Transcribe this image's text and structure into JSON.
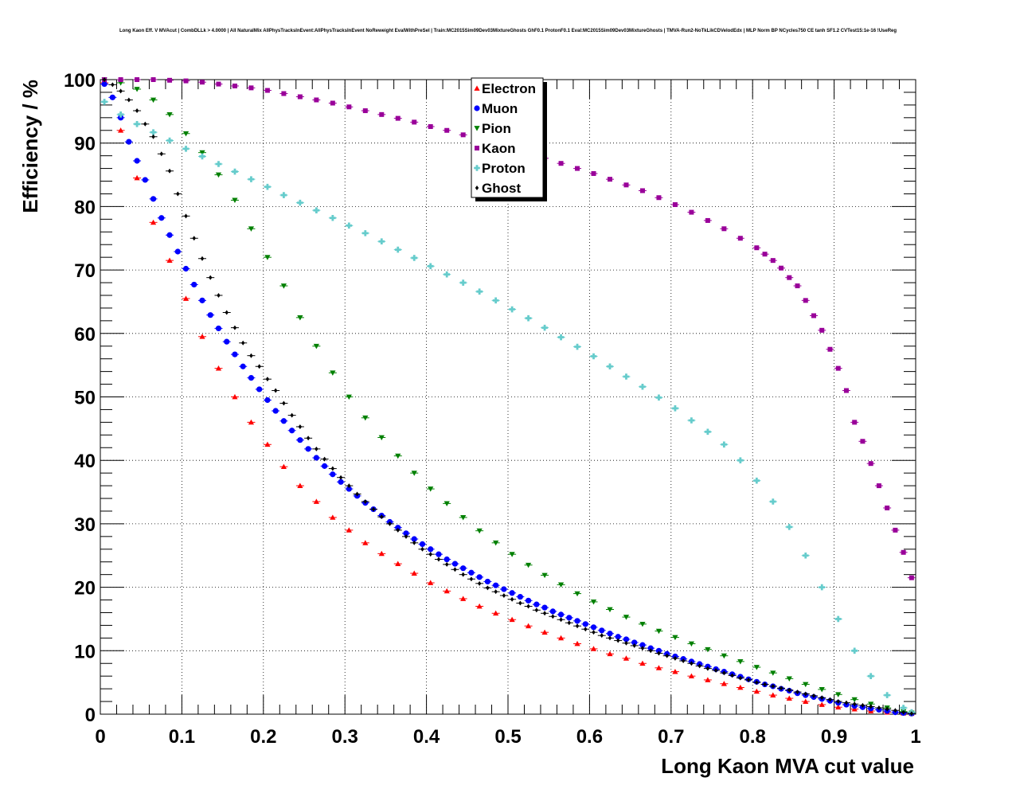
{
  "title": "Long Kaon Eff. V MVAcut | CombDLLk > 4.0000 | All NaturalMix AllPhysTracksInEvent:AllPhysTracksInEvent NoReweight EvalWithPreSel | Train:MC2015Sim09Dev03MixtureGhosts GhF0.1 ProtonF0.1 Eval:MC2015Sim09Dev03MixtureGhosts | TMVA-Run2-NoTkLikCDVelodEdx | MLP Norm BP NCycles750 CE tanh SF1.2 CVTest15:1e-16 !UseReg",
  "chart_data": {
    "type": "scatter",
    "xlabel": "Long Kaon MVA cut value",
    "ylabel": "Efficiency / %",
    "xlim": [
      0,
      1
    ],
    "ylim": [
      0,
      100
    ],
    "xticks": [
      "0",
      "0.1",
      "0.2",
      "0.3",
      "0.4",
      "0.5",
      "0.6",
      "0.7",
      "0.8",
      "0.9",
      "1"
    ],
    "yticks": [
      "0",
      "10",
      "20",
      "30",
      "40",
      "50",
      "60",
      "70",
      "80",
      "90",
      "100"
    ],
    "grid": true,
    "legend_position": "top-center",
    "series": [
      {
        "name": "Electron",
        "color": "#ff0000",
        "marker": "triangle-up",
        "x": [
          0.005,
          0.025,
          0.045,
          0.065,
          0.085,
          0.105,
          0.125,
          0.145,
          0.165,
          0.185,
          0.205,
          0.225,
          0.245,
          0.265,
          0.285,
          0.305,
          0.325,
          0.345,
          0.365,
          0.385,
          0.405,
          0.425,
          0.445,
          0.465,
          0.485,
          0.505,
          0.525,
          0.545,
          0.565,
          0.585,
          0.605,
          0.625,
          0.645,
          0.665,
          0.685,
          0.705,
          0.725,
          0.745,
          0.765,
          0.785,
          0.805,
          0.825,
          0.845,
          0.865,
          0.885,
          0.905,
          0.925,
          0.945,
          0.965,
          0.985,
          0.995
        ],
        "y": [
          99.5,
          92.0,
          84.5,
          77.5,
          71.5,
          65.5,
          59.5,
          54.5,
          50.0,
          46.0,
          42.5,
          39.0,
          36.0,
          33.5,
          31.0,
          29.0,
          27.0,
          25.3,
          23.7,
          22.2,
          20.7,
          19.4,
          18.2,
          17.0,
          15.9,
          14.9,
          13.9,
          12.9,
          12.0,
          11.1,
          10.3,
          9.5,
          8.8,
          8.0,
          7.3,
          6.7,
          6.0,
          5.4,
          4.8,
          4.2,
          3.6,
          3.0,
          2.5,
          2.0,
          1.5,
          1.1,
          0.8,
          0.5,
          0.3,
          0.15,
          0.1
        ]
      },
      {
        "name": "Muon",
        "color": "#0000ff",
        "marker": "circle",
        "x": [
          0.005,
          0.015,
          0.025,
          0.035,
          0.045,
          0.055,
          0.065,
          0.075,
          0.085,
          0.095,
          0.105,
          0.115,
          0.125,
          0.135,
          0.145,
          0.155,
          0.165,
          0.175,
          0.185,
          0.195,
          0.205,
          0.215,
          0.225,
          0.235,
          0.245,
          0.255,
          0.265,
          0.275,
          0.285,
          0.295,
          0.305,
          0.315,
          0.325,
          0.335,
          0.345,
          0.355,
          0.365,
          0.375,
          0.385,
          0.395,
          0.405,
          0.415,
          0.425,
          0.435,
          0.445,
          0.455,
          0.465,
          0.475,
          0.485,
          0.495,
          0.505,
          0.515,
          0.525,
          0.535,
          0.545,
          0.555,
          0.565,
          0.575,
          0.585,
          0.595,
          0.605,
          0.615,
          0.625,
          0.635,
          0.645,
          0.655,
          0.665,
          0.675,
          0.685,
          0.695,
          0.705,
          0.715,
          0.725,
          0.735,
          0.745,
          0.755,
          0.765,
          0.775,
          0.785,
          0.795,
          0.805,
          0.815,
          0.825,
          0.835,
          0.845,
          0.855,
          0.865,
          0.875,
          0.885,
          0.895,
          0.905,
          0.915,
          0.925,
          0.935,
          0.945,
          0.955,
          0.965,
          0.975,
          0.985,
          0.995
        ],
        "y": [
          99.3,
          97.2,
          94.0,
          90.2,
          87.2,
          84.2,
          81.2,
          78.2,
          75.5,
          72.9,
          70.2,
          67.7,
          65.2,
          62.9,
          60.8,
          58.7,
          56.7,
          54.8,
          53.0,
          51.2,
          49.5,
          47.8,
          46.2,
          44.7,
          43.2,
          41.8,
          40.4,
          39.1,
          37.8,
          36.6,
          35.5,
          34.4,
          33.3,
          32.3,
          31.3,
          30.3,
          29.4,
          28.5,
          27.6,
          26.8,
          26.0,
          25.2,
          24.4,
          23.7,
          23.0,
          22.3,
          21.6,
          20.9,
          20.3,
          19.7,
          19.1,
          18.5,
          17.9,
          17.3,
          16.8,
          16.2,
          15.7,
          15.2,
          14.7,
          14.2,
          13.7,
          13.2,
          12.7,
          12.2,
          11.8,
          11.3,
          10.9,
          10.4,
          10.0,
          9.5,
          9.1,
          8.7,
          8.3,
          7.9,
          7.5,
          7.1,
          6.7,
          6.3,
          5.9,
          5.5,
          5.1,
          4.7,
          4.4,
          4.0,
          3.7,
          3.3,
          3.0,
          2.7,
          2.4,
          2.1,
          1.8,
          1.5,
          1.3,
          1.1,
          0.9,
          0.7,
          0.5,
          0.3,
          0.2,
          0.1
        ]
      },
      {
        "name": "Pion",
        "color": "#008000",
        "marker": "triangle-down",
        "x": [
          0.005,
          0.025,
          0.045,
          0.065,
          0.085,
          0.105,
          0.125,
          0.145,
          0.165,
          0.185,
          0.205,
          0.225,
          0.245,
          0.265,
          0.285,
          0.305,
          0.325,
          0.345,
          0.365,
          0.385,
          0.405,
          0.425,
          0.445,
          0.465,
          0.485,
          0.505,
          0.525,
          0.545,
          0.565,
          0.585,
          0.605,
          0.625,
          0.645,
          0.665,
          0.685,
          0.705,
          0.725,
          0.745,
          0.765,
          0.785,
          0.805,
          0.825,
          0.845,
          0.865,
          0.885,
          0.905,
          0.925,
          0.945,
          0.965,
          0.985,
          0.995
        ],
        "y": [
          100.0,
          99.5,
          98.5,
          96.8,
          94.5,
          91.5,
          88.5,
          85.0,
          81.0,
          76.5,
          72.0,
          67.5,
          62.5,
          58.0,
          53.8,
          50.0,
          46.7,
          43.6,
          40.7,
          38.0,
          35.5,
          33.2,
          31.0,
          28.9,
          27.0,
          25.2,
          23.5,
          21.9,
          20.4,
          19.0,
          17.7,
          16.5,
          15.3,
          14.2,
          13.1,
          12.1,
          11.1,
          10.2,
          9.2,
          8.3,
          7.4,
          6.5,
          5.6,
          4.7,
          3.9,
          3.1,
          2.3,
          1.6,
          1.0,
          0.4,
          0.2
        ]
      },
      {
        "name": "Kaon",
        "color": "#990099",
        "marker": "square",
        "x": [
          0.005,
          0.025,
          0.045,
          0.065,
          0.085,
          0.105,
          0.125,
          0.145,
          0.165,
          0.185,
          0.205,
          0.225,
          0.245,
          0.265,
          0.285,
          0.305,
          0.325,
          0.345,
          0.365,
          0.385,
          0.405,
          0.425,
          0.445,
          0.465,
          0.485,
          0.505,
          0.525,
          0.545,
          0.565,
          0.585,
          0.605,
          0.625,
          0.645,
          0.665,
          0.685,
          0.705,
          0.725,
          0.745,
          0.765,
          0.785,
          0.805,
          0.815,
          0.825,
          0.835,
          0.845,
          0.855,
          0.865,
          0.875,
          0.885,
          0.895,
          0.905,
          0.915,
          0.925,
          0.935,
          0.945,
          0.955,
          0.965,
          0.975,
          0.985,
          0.995
        ],
        "y": [
          100.0,
          100.0,
          100.0,
          100.0,
          99.9,
          99.8,
          99.6,
          99.3,
          99.0,
          98.7,
          98.3,
          97.8,
          97.3,
          96.8,
          96.3,
          95.7,
          95.1,
          94.5,
          93.9,
          93.3,
          92.6,
          92.0,
          91.3,
          90.6,
          89.9,
          89.2,
          88.4,
          87.6,
          86.8,
          86.0,
          85.2,
          84.3,
          83.4,
          82.5,
          81.4,
          80.3,
          79.1,
          77.8,
          76.5,
          75.0,
          73.5,
          72.5,
          71.5,
          70.3,
          68.8,
          67.5,
          65.2,
          62.8,
          60.5,
          57.5,
          54.5,
          51.0,
          46.0,
          43.0,
          39.5,
          36.0,
          32.5,
          29.0,
          25.5,
          21.5
        ]
      },
      {
        "name": "Proton",
        "color": "#66cccc",
        "marker": "cross",
        "x": [
          0.005,
          0.025,
          0.045,
          0.065,
          0.085,
          0.105,
          0.125,
          0.145,
          0.165,
          0.185,
          0.205,
          0.225,
          0.245,
          0.265,
          0.285,
          0.305,
          0.325,
          0.345,
          0.365,
          0.385,
          0.405,
          0.425,
          0.445,
          0.465,
          0.485,
          0.505,
          0.525,
          0.545,
          0.565,
          0.585,
          0.605,
          0.625,
          0.645,
          0.665,
          0.685,
          0.705,
          0.725,
          0.745,
          0.765,
          0.785,
          0.805,
          0.825,
          0.845,
          0.865,
          0.885,
          0.905,
          0.925,
          0.945,
          0.965,
          0.985,
          0.995
        ],
        "y": [
          96.5,
          94.5,
          93.0,
          91.7,
          90.4,
          89.1,
          87.9,
          86.7,
          85.5,
          84.3,
          83.1,
          81.8,
          80.6,
          79.4,
          78.2,
          77.0,
          75.8,
          74.5,
          73.2,
          71.9,
          70.6,
          69.3,
          68.0,
          66.6,
          65.2,
          63.8,
          62.4,
          60.9,
          59.4,
          57.9,
          56.4,
          54.8,
          53.2,
          51.6,
          49.9,
          48.2,
          46.3,
          44.5,
          42.5,
          40.0,
          36.8,
          33.5,
          29.5,
          25.0,
          20.0,
          15.0,
          10.0,
          6.0,
          3.0,
          1.0,
          0.3
        ]
      },
      {
        "name": "Ghost",
        "color": "#000000",
        "marker": "diamond",
        "x": [
          0.005,
          0.015,
          0.025,
          0.035,
          0.045,
          0.055,
          0.065,
          0.075,
          0.085,
          0.095,
          0.105,
          0.115,
          0.125,
          0.135,
          0.145,
          0.155,
          0.165,
          0.175,
          0.185,
          0.195,
          0.205,
          0.215,
          0.225,
          0.235,
          0.245,
          0.255,
          0.265,
          0.275,
          0.285,
          0.295,
          0.305,
          0.315,
          0.325,
          0.335,
          0.345,
          0.355,
          0.365,
          0.375,
          0.385,
          0.395,
          0.405,
          0.415,
          0.425,
          0.435,
          0.445,
          0.455,
          0.465,
          0.475,
          0.485,
          0.495,
          0.505,
          0.515,
          0.525,
          0.535,
          0.545,
          0.555,
          0.565,
          0.575,
          0.585,
          0.595,
          0.605,
          0.615,
          0.625,
          0.635,
          0.645,
          0.655,
          0.665,
          0.675,
          0.685,
          0.695,
          0.705,
          0.715,
          0.725,
          0.735,
          0.745,
          0.755,
          0.765,
          0.775,
          0.785,
          0.795,
          0.805,
          0.815,
          0.825,
          0.835,
          0.845,
          0.855,
          0.865,
          0.875,
          0.885,
          0.895,
          0.905,
          0.915,
          0.925,
          0.935,
          0.945,
          0.955,
          0.965,
          0.975,
          0.985,
          0.995
        ],
        "y": [
          100.0,
          99.2,
          98.2,
          96.8,
          95.1,
          93.0,
          91.0,
          88.3,
          85.6,
          82.0,
          78.5,
          75.0,
          71.8,
          68.8,
          66.0,
          63.3,
          60.9,
          58.5,
          56.5,
          54.8,
          52.8,
          51.0,
          49.0,
          47.1,
          45.3,
          43.5,
          41.8,
          40.2,
          38.7,
          37.3,
          36.0,
          34.7,
          33.5,
          32.3,
          31.1,
          30.0,
          29.0,
          28.0,
          27.0,
          26.0,
          25.2,
          24.4,
          23.6,
          22.8,
          22.0,
          21.3,
          20.6,
          19.9,
          19.3,
          18.7,
          18.1,
          17.5,
          17.0,
          16.4,
          15.9,
          15.4,
          14.9,
          14.4,
          13.9,
          13.4,
          12.9,
          12.4,
          12.0,
          11.6,
          11.2,
          10.8,
          10.4,
          10.0,
          9.6,
          9.2,
          8.8,
          8.4,
          8.0,
          7.6,
          7.2,
          6.9,
          6.5,
          6.1,
          5.7,
          5.4,
          5.0,
          4.7,
          4.4,
          4.1,
          3.8,
          3.5,
          3.2,
          2.9,
          2.6,
          2.3,
          2.0,
          1.8,
          1.6,
          1.4,
          1.2,
          1.0,
          0.8,
          0.6,
          0.3,
          0.1
        ]
      }
    ]
  }
}
